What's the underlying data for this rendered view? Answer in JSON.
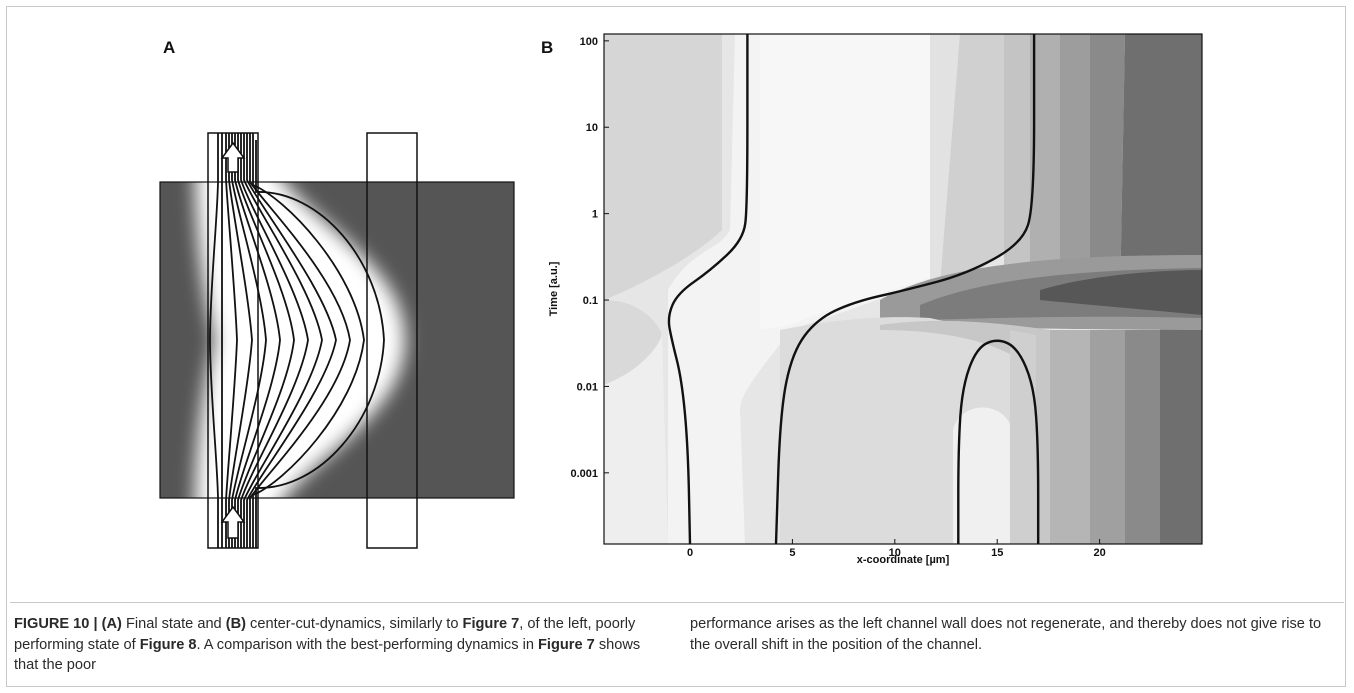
{
  "panels": {
    "a_label": "A",
    "b_label": "B"
  },
  "chart_data": {
    "type": "heatmap",
    "title": "",
    "xlabel": "x-coordinate [µm]",
    "ylabel": "Time [a.u.]",
    "y_scale": "log",
    "x_ticks": [
      "0",
      "5",
      "10",
      "15",
      "20"
    ],
    "y_ticks": [
      "0.001",
      "0.01",
      "0.1",
      "1",
      "10",
      "100"
    ],
    "xlim": [
      -4.2,
      25
    ],
    "ylim": [
      0.00015,
      120
    ],
    "grayscale": true,
    "contour_lines": [
      {
        "name": "left channel wall",
        "points": [
          [
            2.8,
            120
          ],
          [
            2.8,
            1.2
          ],
          [
            2.6,
            0.5
          ],
          [
            1.0,
            0.22
          ],
          [
            -0.6,
            0.12
          ],
          [
            -1.1,
            0.065
          ],
          [
            -0.9,
            0.035
          ],
          [
            -0.4,
            0.012
          ],
          [
            -0.1,
            0.002
          ],
          [
            0.0,
            0.00015
          ]
        ]
      },
      {
        "name": "right channel wall",
        "points": [
          [
            16.8,
            120
          ],
          [
            16.8,
            1.2
          ],
          [
            16.2,
            0.45
          ],
          [
            13.5,
            0.2
          ],
          [
            10.5,
            0.13
          ],
          [
            8.0,
            0.095
          ],
          [
            6.2,
            0.06
          ],
          [
            5.0,
            0.025
          ],
          [
            4.4,
            0.005
          ],
          [
            4.2,
            0.00015
          ]
        ]
      },
      {
        "name": "inner loop",
        "points": [
          [
            13.1,
            0.00015
          ],
          [
            13.1,
            0.002
          ],
          [
            13.3,
            0.01
          ],
          [
            14.0,
            0.028
          ],
          [
            15.0,
            0.036
          ],
          [
            16.0,
            0.028
          ],
          [
            16.8,
            0.01
          ],
          [
            17.0,
            0.002
          ],
          [
            17.0,
            0.00015
          ]
        ]
      }
    ],
    "panel_a": {
      "type": "schematic",
      "description_label": "Final state"
    }
  },
  "caption": {
    "figure_label": "FIGURE 10 | ",
    "a_ref": "(A)",
    "t1": " Final state and ",
    "b_ref": "(B)",
    "t2": " center-cut-dynamics, similarly to ",
    "fig7_ref": "Figure 7",
    "t3": ", of the left, poorly performing state of ",
    "fig8_ref": "Figure 8",
    "t4": ". A comparison with the best-performing dynamics in ",
    "fig7_ref2": "Figure 7",
    "t5": " shows that the poor",
    "right_text": "performance arises as the left channel wall does not regenerate, and thereby does not give rise to the overall shift in the position of the channel."
  }
}
